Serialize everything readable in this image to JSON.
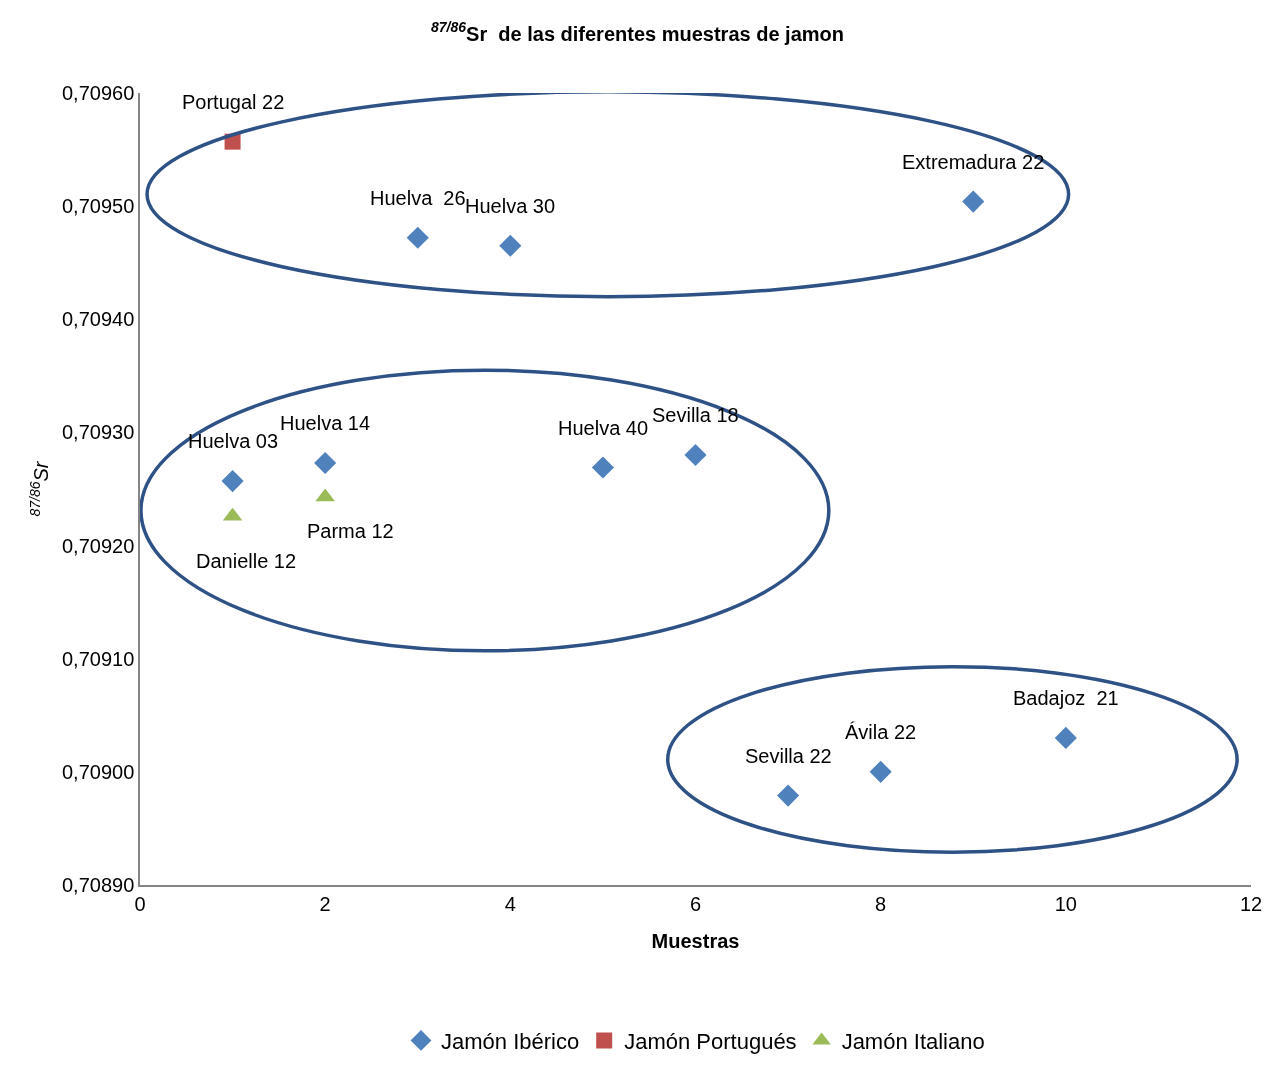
{
  "chart_data": {
    "type": "scatter",
    "title": "$^{87/86}$Sr  de las diferentes muestras de jamon",
    "xlabel": "Muestras",
    "ylabel": "$^{87/86}$Sr",
    "series": [
      {
        "name": "Jamón Ibérico",
        "color": "#4f81bd",
        "marker": "diamond",
        "x": [
          3,
          4,
          9,
          1,
          2,
          5,
          6,
          7,
          8,
          10
        ],
        "values": [
          0.709472,
          0.709465,
          0.709504,
          0.709257,
          0.709273,
          0.709269,
          0.70928,
          0.708979,
          0.709,
          0.70903
        ]
      },
      {
        "name": "Jamón Portugués",
        "color": "#c0504d",
        "marker": "square",
        "x": [
          1
        ],
        "values": [
          0.709557
        ]
      },
      {
        "name": "Jamón Italiano",
        "color": "#9bbb59",
        "marker": "triangle",
        "x": [
          1,
          2
        ],
        "values": [
          0.709226,
          0.709243
        ]
      }
    ],
    "annotations": [
      {
        "text": "Portugal 22",
        "x": 1,
        "y": 0.709557
      },
      {
        "text": "Extremadura 22",
        "x": 9,
        "y": 0.709504
      },
      {
        "text": "Huelva  26",
        "x": 3,
        "y": 0.709472
      },
      {
        "text": "Huelva 30",
        "x": 4,
        "y": 0.709465
      },
      {
        "text": "Huelva 03",
        "x": 1,
        "y": 0.709257
      },
      {
        "text": "Huelva 14",
        "x": 2,
        "y": 0.709273
      },
      {
        "text": "Huelva 40",
        "x": 5,
        "y": 0.709269
      },
      {
        "text": "Sevilla 18",
        "x": 6,
        "y": 0.70928
      },
      {
        "text": "Danielle 12",
        "x": 1,
        "y": 0.709226
      },
      {
        "text": "Parma 12",
        "x": 2,
        "y": 0.709243
      },
      {
        "text": "Sevilla 22",
        "x": 7,
        "y": 0.708979
      },
      {
        "text": "Ávila 22",
        "x": 8,
        "y": 0.709
      },
      {
        "text": "Badajoz  21",
        "x": 10,
        "y": 0.70903
      }
    ],
    "xlim": [
      0,
      12
    ],
    "xticks": [
      0,
      2,
      4,
      6,
      8,
      10,
      12
    ],
    "ylim": [
      0.7089,
      0.7096
    ],
    "yticks": [
      {
        "value": 0.7089,
        "label": "0,70890"
      },
      {
        "value": 0.709,
        "label": "0,70900"
      },
      {
        "value": 0.7091,
        "label": "0,70910"
      },
      {
        "value": 0.7092,
        "label": "0,70920"
      },
      {
        "value": 0.7093,
        "label": "0,70930"
      },
      {
        "value": 0.7094,
        "label": "0,70940"
      },
      {
        "value": 0.7095,
        "label": "0,70950"
      },
      {
        "value": 0.7096,
        "label": "0,70960"
      }
    ],
    "grid": false,
    "legend": "bottom"
  }
}
